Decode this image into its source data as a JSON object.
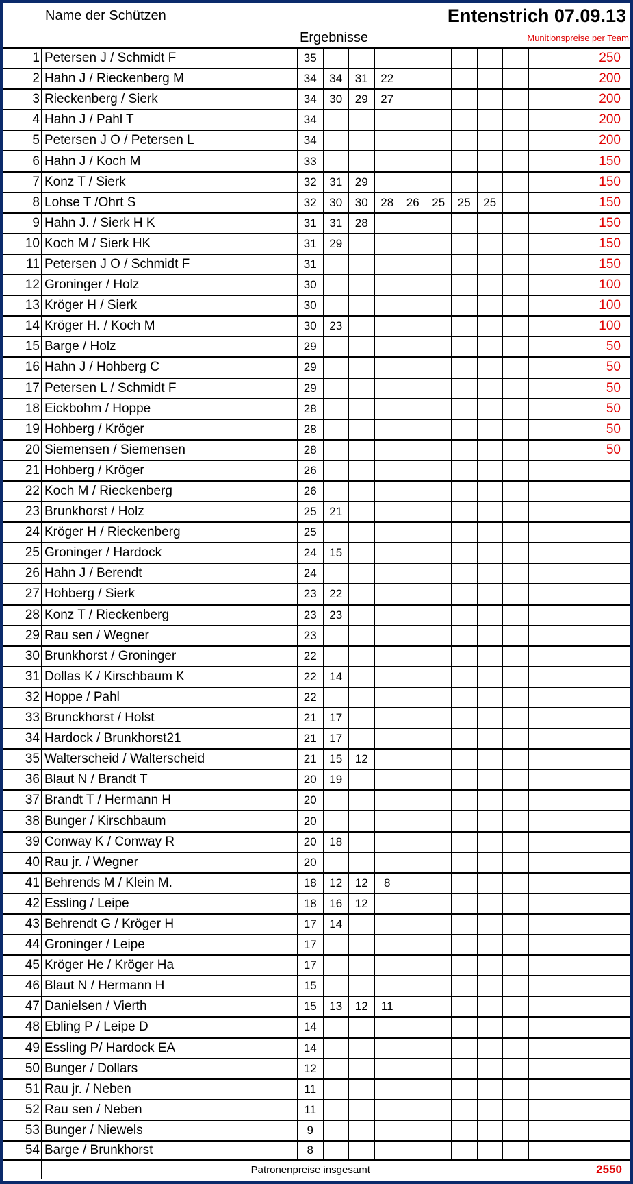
{
  "header": {
    "names_label": "Name der Schützen",
    "title": "Entenstrich  07.09.13",
    "results_label": "Ergebnisse",
    "prize_label": "Munitionspreise per Team"
  },
  "colors": {
    "frame": "#0b2a6b",
    "prize": "#e00000"
  },
  "rows": [
    {
      "rank": "1",
      "name": "Petersen J / Schmidt  F",
      "results": [
        "35"
      ],
      "prize": "250"
    },
    {
      "rank": "2",
      "name": "Hahn J / Rieckenberg M",
      "results": [
        "34",
        "34",
        "31",
        "22"
      ],
      "prize": "200"
    },
    {
      "rank": "3",
      "name": "Rieckenberg / Sierk",
      "results": [
        "34",
        "30",
        "29",
        "27"
      ],
      "prize": "200"
    },
    {
      "rank": "4",
      "name": "Hahn J / Pahl T",
      "results": [
        "34"
      ],
      "prize": "200"
    },
    {
      "rank": "5",
      "name": "Petersen J O / Petersen L",
      "results": [
        "34"
      ],
      "prize": "200"
    },
    {
      "rank": "6",
      "name": "Hahn J / Koch M",
      "results": [
        "33"
      ],
      "prize": "150"
    },
    {
      "rank": "7",
      "name": "Konz T / Sierk",
      "results": [
        "32",
        "31",
        "29"
      ],
      "prize": "150"
    },
    {
      "rank": "8",
      "name": "Lohse T /Ohrt  S",
      "results": [
        "32",
        "30",
        "30",
        "28",
        "26",
        "25",
        "25",
        "25"
      ],
      "prize": "150"
    },
    {
      "rank": "9",
      "name": "Hahn J. / Sierk  H K",
      "results": [
        "31",
        "31",
        "28"
      ],
      "prize": "150"
    },
    {
      "rank": "10",
      "name": "Koch M  / Sierk  HK",
      "results": [
        "31",
        "29"
      ],
      "prize": "150"
    },
    {
      "rank": "11",
      "name": "Petersen J O / Schmidt F",
      "results": [
        "31"
      ],
      "prize": "150"
    },
    {
      "rank": "12",
      "name": "Groninger / Holz",
      "results": [
        "30"
      ],
      "prize": "100"
    },
    {
      "rank": "13",
      "name": "Kröger H / Sierk",
      "results": [
        "30"
      ],
      "prize": "100"
    },
    {
      "rank": "14",
      "name": "Kröger H. / Koch  M",
      "results": [
        "30",
        "23"
      ],
      "prize": "100"
    },
    {
      "rank": "15",
      "name": "Barge / Holz",
      "results": [
        "29"
      ],
      "prize": "50"
    },
    {
      "rank": "16",
      "name": "Hahn J / Hohberg C",
      "results": [
        "29"
      ],
      "prize": "50"
    },
    {
      "rank": "17",
      "name": "Petersen L / Schmidt F",
      "results": [
        "29"
      ],
      "prize": "50"
    },
    {
      "rank": "18",
      "name": "Eickbohm / Hoppe",
      "results": [
        "28"
      ],
      "prize": "50"
    },
    {
      "rank": "19",
      "name": "Hohberg / Kröger",
      "results": [
        "28"
      ],
      "prize": "50"
    },
    {
      "rank": "20",
      "name": "Siemensen / Siemensen",
      "results": [
        "28"
      ],
      "prize": "50"
    },
    {
      "rank": "21",
      "name": "Hohberg / Kröger",
      "results": [
        "26"
      ],
      "prize": ""
    },
    {
      "rank": "22",
      "name": "Koch  M / Rieckenberg",
      "results": [
        "26"
      ],
      "prize": ""
    },
    {
      "rank": "23",
      "name": "Brunkhorst / Holz",
      "results": [
        "25",
        "21"
      ],
      "prize": ""
    },
    {
      "rank": "24",
      "name": "Kröger H / Rieckenberg",
      "results": [
        "25"
      ],
      "prize": ""
    },
    {
      "rank": "25",
      "name": "Groninger  / Hardock",
      "results": [
        "24",
        "15"
      ],
      "prize": ""
    },
    {
      "rank": "26",
      "name": "Hahn J / Berendt",
      "results": [
        "24"
      ],
      "prize": ""
    },
    {
      "rank": "27",
      "name": "Hohberg / Sierk",
      "results": [
        "23",
        "22"
      ],
      "prize": ""
    },
    {
      "rank": "28",
      "name": "Konz T / Rieckenberg",
      "results": [
        "23",
        "23"
      ],
      "prize": ""
    },
    {
      "rank": "29",
      "name": "Rau sen  / Wegner",
      "results": [
        "23"
      ],
      "prize": ""
    },
    {
      "rank": "30",
      "name": "Brunkhorst / Groninger",
      "results": [
        "22"
      ],
      "prize": ""
    },
    {
      "rank": "31",
      "name": "Dollas K / Kirschbaum K",
      "results": [
        "22",
        "14"
      ],
      "prize": ""
    },
    {
      "rank": "32",
      "name": "Hoppe / Pahl",
      "results": [
        "22"
      ],
      "prize": ""
    },
    {
      "rank": "33",
      "name": "Brunckhorst / Holst",
      "results": [
        "21",
        "17"
      ],
      "prize": ""
    },
    {
      "rank": "34",
      "name": "Hardock / Brunkhorst21",
      "results": [
        "21",
        "17"
      ],
      "prize": ""
    },
    {
      "rank": "35",
      "name": "Walterscheid / Walterscheid",
      "results": [
        "21",
        "15",
        "12"
      ],
      "prize": ""
    },
    {
      "rank": "36",
      "name": "Blaut N / Brandt T",
      "results": [
        "20",
        "19"
      ],
      "prize": ""
    },
    {
      "rank": "37",
      "name": "Brandt T / Hermann H",
      "results": [
        "20"
      ],
      "prize": ""
    },
    {
      "rank": "38",
      "name": "Bunger / Kirschbaum",
      "results": [
        "20"
      ],
      "prize": ""
    },
    {
      "rank": "39",
      "name": "Conway K / Conway R",
      "results": [
        "20",
        "18"
      ],
      "prize": ""
    },
    {
      "rank": "40",
      "name": "Rau jr. / Wegner",
      "results": [
        "20"
      ],
      "prize": ""
    },
    {
      "rank": "41",
      "name": "Behrends  M / Klein M.",
      "results": [
        "18",
        "12",
        "12",
        "8"
      ],
      "prize": ""
    },
    {
      "rank": "42",
      "name": "Essling / Leipe",
      "results": [
        "18",
        "16",
        "12"
      ],
      "prize": ""
    },
    {
      "rank": "43",
      "name": "Behrendt G / Kröger  H",
      "results": [
        "17",
        "14"
      ],
      "prize": ""
    },
    {
      "rank": "44",
      "name": "Groninger / Leipe",
      "results": [
        "17"
      ],
      "prize": ""
    },
    {
      "rank": "45",
      "name": "Kröger He / Kröger Ha",
      "results": [
        "17"
      ],
      "prize": ""
    },
    {
      "rank": "46",
      "name": "Blaut N / Hermann H",
      "results": [
        "15"
      ],
      "prize": ""
    },
    {
      "rank": "47",
      "name": "Danielsen / Vierth",
      "results": [
        "15",
        "13",
        "12",
        "11"
      ],
      "prize": ""
    },
    {
      "rank": "48",
      "name": "Ebling P / Leipe D",
      "results": [
        "14"
      ],
      "prize": ""
    },
    {
      "rank": "49",
      "name": "Essling P/  Hardock  EA",
      "results": [
        "14"
      ],
      "prize": ""
    },
    {
      "rank": "50",
      "name": "Bunger / Dollars",
      "results": [
        "12"
      ],
      "prize": ""
    },
    {
      "rank": "51",
      "name": "Rau jr. / Neben",
      "results": [
        "11"
      ],
      "prize": ""
    },
    {
      "rank": "52",
      "name": "Rau sen    / Neben",
      "results": [
        "11"
      ],
      "prize": ""
    },
    {
      "rank": "53",
      "name": "Bunger / Niewels",
      "results": [
        "9"
      ],
      "prize": ""
    },
    {
      "rank": "54",
      "name": "Barge / Brunkhorst",
      "results": [
        "8"
      ],
      "prize": ""
    }
  ],
  "footer": {
    "label": "Patronenpreise insgesamt",
    "total": "2550"
  }
}
